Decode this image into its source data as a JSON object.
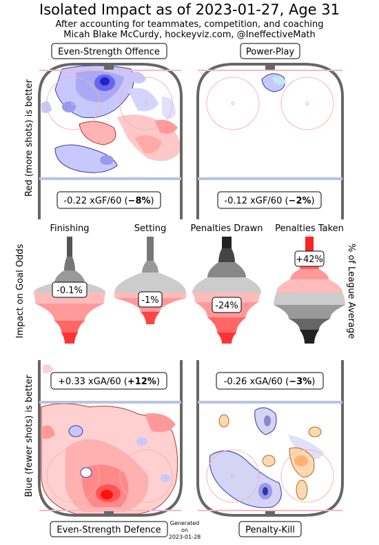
{
  "header": {
    "title": "Isolated Impact as of 2023-01-27, Age 31",
    "subtitle1": "After accounting for teammates, competition, and coaching",
    "subtitle2": "Micah Blake McCurdy, hockeyviz.com, @IneffectiveMath"
  },
  "panels": {
    "es_offence": {
      "label": "Even-Strength Offence",
      "stat_value": "-0.22 xGF/60 (",
      "stat_pct": "−8%",
      "stat_close": ")"
    },
    "power_play": {
      "label": "Power-Play",
      "stat_value": "-0.12 xGF/60 (",
      "stat_pct": "−2%",
      "stat_close": ")"
    },
    "es_defence": {
      "label": "Even-Strength Defence",
      "stat_value": "+0.33 xGA/60 (",
      "stat_pct": "+12%",
      "stat_close": ")"
    },
    "penalty_kill": {
      "label": "Penalty-Kill",
      "stat_value": "-0.26 xGA/60 (",
      "stat_pct": "−3%",
      "stat_close": ")"
    }
  },
  "axis_labels": {
    "top_left": "Red (more shots) is better",
    "middle_left": "Impact on Goal Odds",
    "bottom_left": "Blue (fewer shots) is better",
    "middle_right": "% of League Average"
  },
  "generated": {
    "line1": "Generated",
    "line2": "on",
    "line3": "2023-01-28"
  },
  "chart_data": {
    "type": "violin",
    "ylabel": "Impact on Goal Odds",
    "categories": [
      "Finishing",
      "Setting",
      "Penalties Drawn",
      "Penalties Taken"
    ],
    "values": [
      "-0.1%",
      "-1%",
      "-24%",
      "+42%"
    ],
    "color_scale": {
      "positive": "#808080",
      "negative": "#ff3333",
      "neutral": "#cccccc"
    }
  },
  "colors": {
    "rink_border": "#666666",
    "blue_line": "#b8c4e0",
    "goal_line": "#f4b8c0",
    "circle": "#f7b0b0",
    "offence_red": "#ff8888",
    "defence_blue": "#9999ff"
  }
}
